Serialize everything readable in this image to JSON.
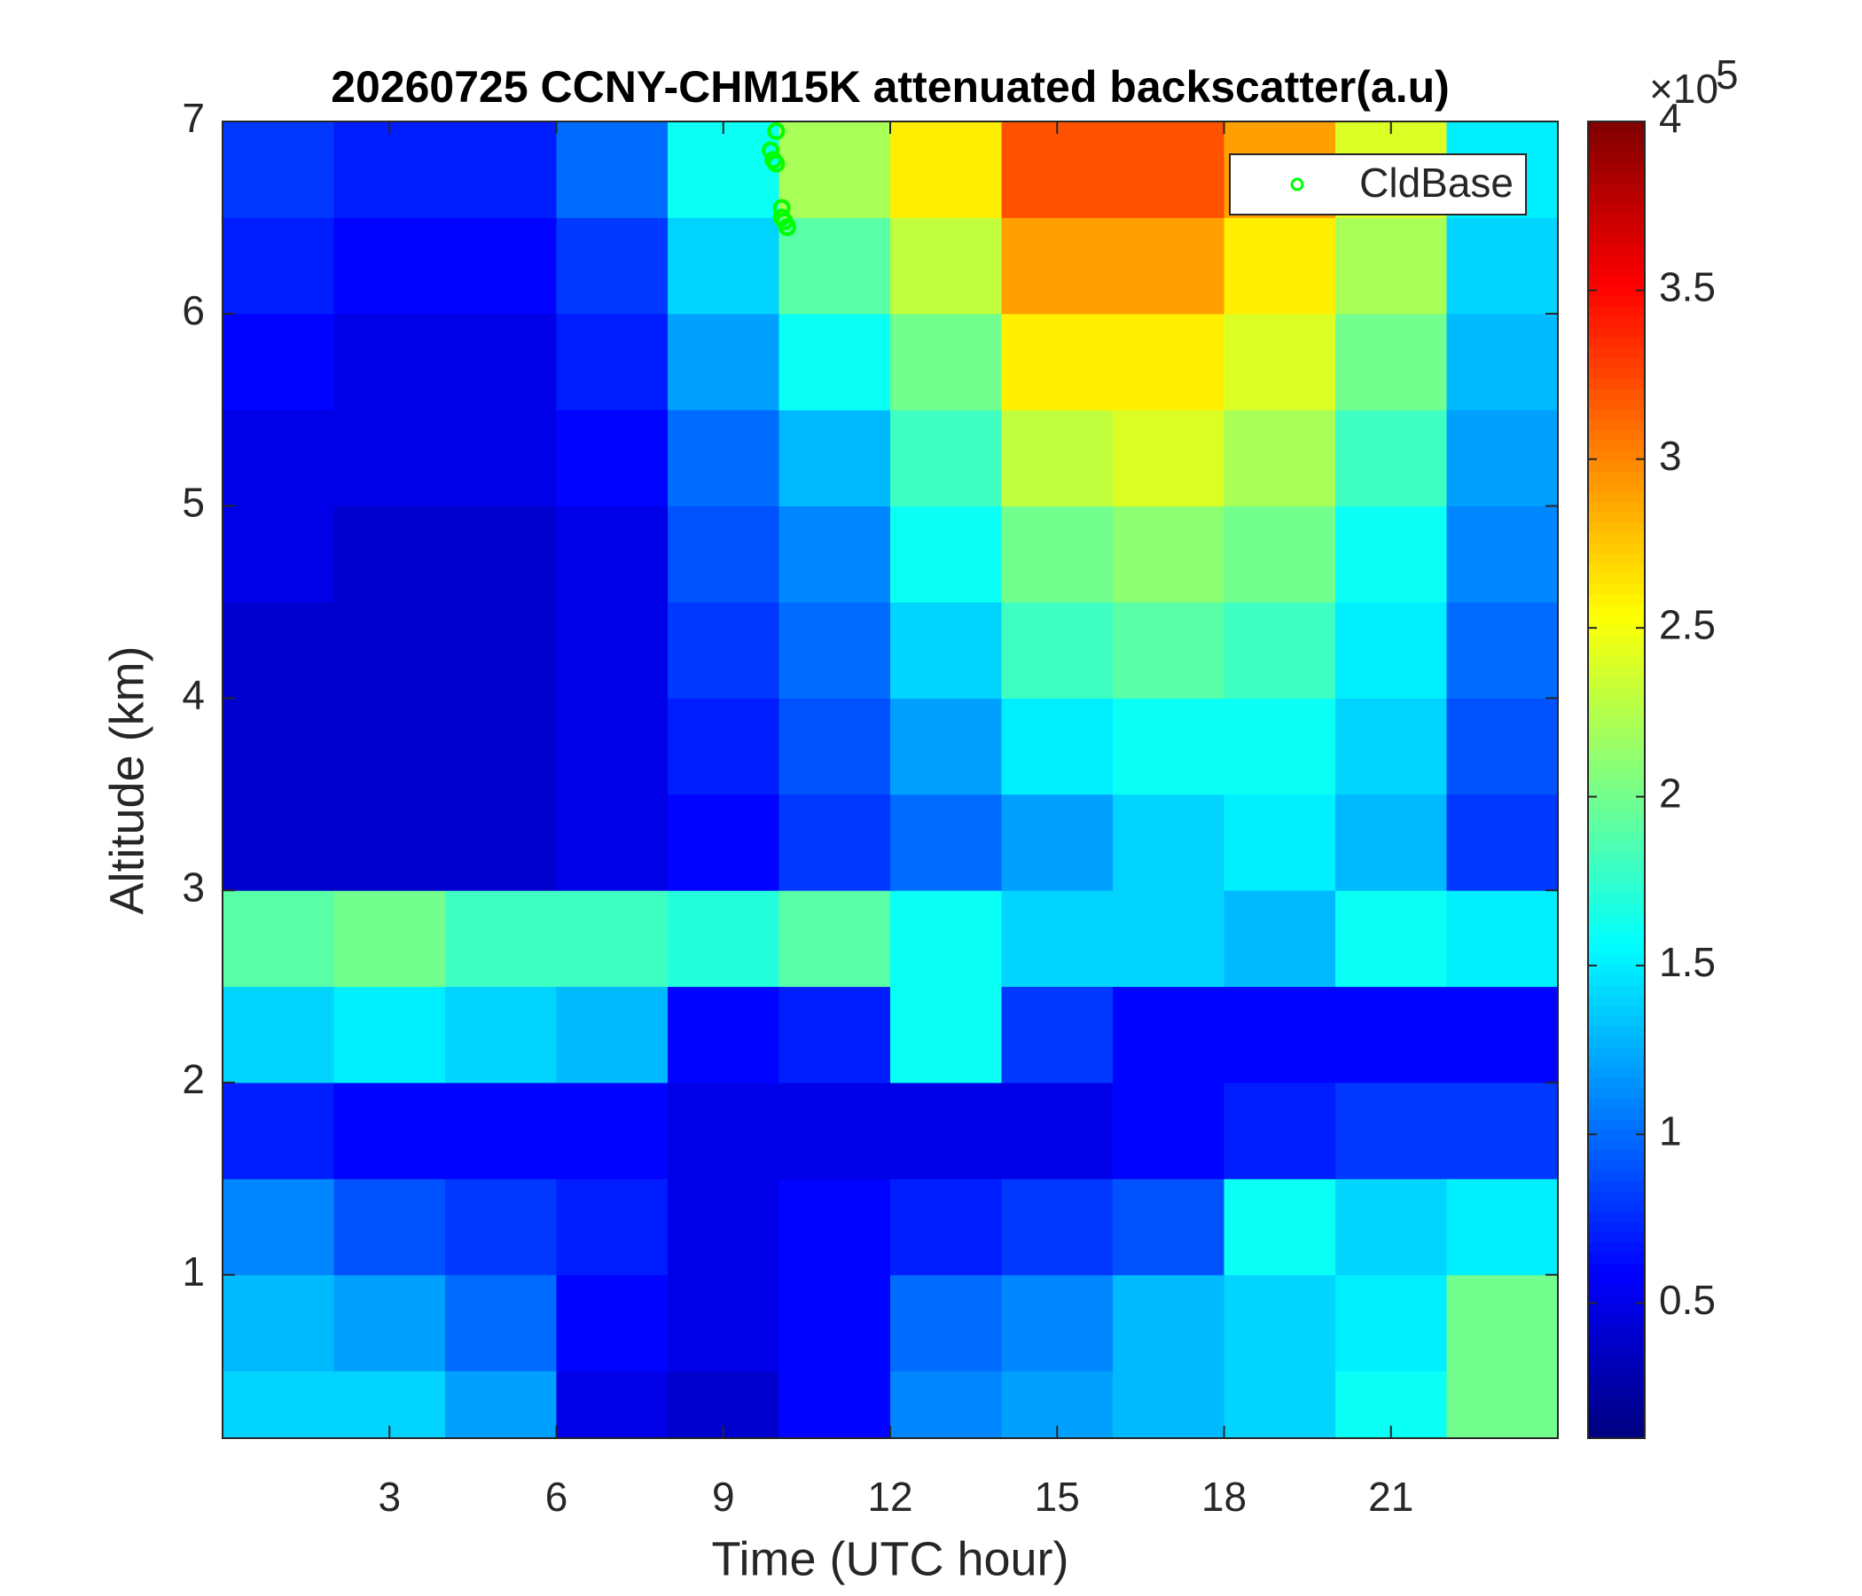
{
  "chart_data": {
    "type": "heatmap",
    "title": "20260725 CCNY-CHM15K attenuated backscatter(a.u)",
    "x_label": "Time (UTC hour)",
    "y_label": "Altitude (km)",
    "xlim": [
      0,
      24
    ],
    "ylim": [
      0.15,
      7
    ],
    "xticks": [
      3,
      6,
      9,
      12,
      15,
      18,
      21
    ],
    "yticks": [
      1,
      2,
      3,
      4,
      5,
      6,
      7
    ],
    "x_edges": [
      0,
      2,
      4,
      6,
      8,
      10,
      12,
      14,
      16,
      18,
      20,
      22,
      24
    ],
    "y_edges": [
      0.15,
      0.5,
      1,
      1.5,
      2,
      2.5,
      3,
      3.5,
      4,
      4.5,
      5,
      5.5,
      6,
      6.5,
      7
    ],
    "values": [
      [
        1.4,
        1.4,
        1.2,
        0.5,
        0.4,
        0.6,
        1.1,
        1.2,
        1.3,
        1.4,
        1.6,
        2.0
      ],
      [
        1.3,
        1.2,
        1.0,
        0.6,
        0.5,
        0.6,
        1.0,
        1.1,
        1.3,
        1.4,
        1.5,
        2.0
      ],
      [
        1.1,
        0.9,
        0.8,
        0.7,
        0.5,
        0.6,
        0.7,
        0.8,
        0.9,
        1.6,
        1.4,
        1.5
      ],
      [
        0.7,
        0.6,
        0.6,
        0.6,
        0.5,
        0.5,
        0.5,
        0.5,
        0.6,
        0.7,
        0.8,
        0.8
      ],
      [
        1.4,
        1.5,
        1.4,
        1.3,
        0.6,
        0.7,
        1.6,
        0.8,
        0.6,
        0.6,
        0.6,
        0.6
      ],
      [
        1.9,
        2.0,
        1.8,
        1.8,
        1.7,
        1.9,
        1.6,
        1.4,
        1.4,
        1.3,
        1.6,
        1.5
      ],
      [
        0.4,
        0.4,
        0.4,
        0.5,
        0.6,
        0.8,
        1.0,
        1.2,
        1.4,
        1.5,
        1.3,
        0.8
      ],
      [
        0.4,
        0.4,
        0.4,
        0.5,
        0.7,
        0.9,
        1.2,
        1.5,
        1.6,
        1.6,
        1.4,
        0.9
      ],
      [
        0.4,
        0.4,
        0.4,
        0.5,
        0.8,
        1.0,
        1.4,
        1.8,
        1.9,
        1.8,
        1.5,
        1.0
      ],
      [
        0.5,
        0.4,
        0.4,
        0.5,
        0.9,
        1.1,
        1.6,
        2.0,
        2.1,
        2.0,
        1.6,
        1.1
      ],
      [
        0.5,
        0.5,
        0.5,
        0.6,
        1.0,
        1.3,
        1.8,
        2.3,
        2.4,
        2.2,
        1.8,
        1.2
      ],
      [
        0.6,
        0.5,
        0.5,
        0.7,
        1.2,
        1.6,
        2.0,
        2.6,
        2.6,
        2.4,
        2.0,
        1.3
      ],
      [
        0.7,
        0.6,
        0.6,
        0.8,
        1.4,
        1.9,
        2.3,
        2.9,
        2.9,
        2.6,
        2.2,
        1.4
      ],
      [
        0.8,
        0.7,
        0.7,
        1.0,
        1.6,
        2.2,
        2.6,
        3.2,
        3.2,
        2.9,
        2.4,
        1.5
      ]
    ],
    "colormap": "jet",
    "clim": [
      0.1,
      4
    ],
    "cticks": [
      0.5,
      1,
      1.5,
      2,
      2.5,
      3,
      3.5,
      4
    ],
    "colorbar_multiplier": {
      "base": "×10",
      "exponent": 5
    },
    "series": [
      {
        "name": "CldBase",
        "type": "scatter",
        "color": "#00ff00",
        "x": [
          9.95,
          9.85,
          9.9,
          9.95,
          10.05,
          10.1,
          10.15,
          10.05
        ],
        "y": [
          6.95,
          6.85,
          6.8,
          6.78,
          6.5,
          6.48,
          6.45,
          6.55
        ]
      }
    ],
    "legend": "northeast"
  }
}
